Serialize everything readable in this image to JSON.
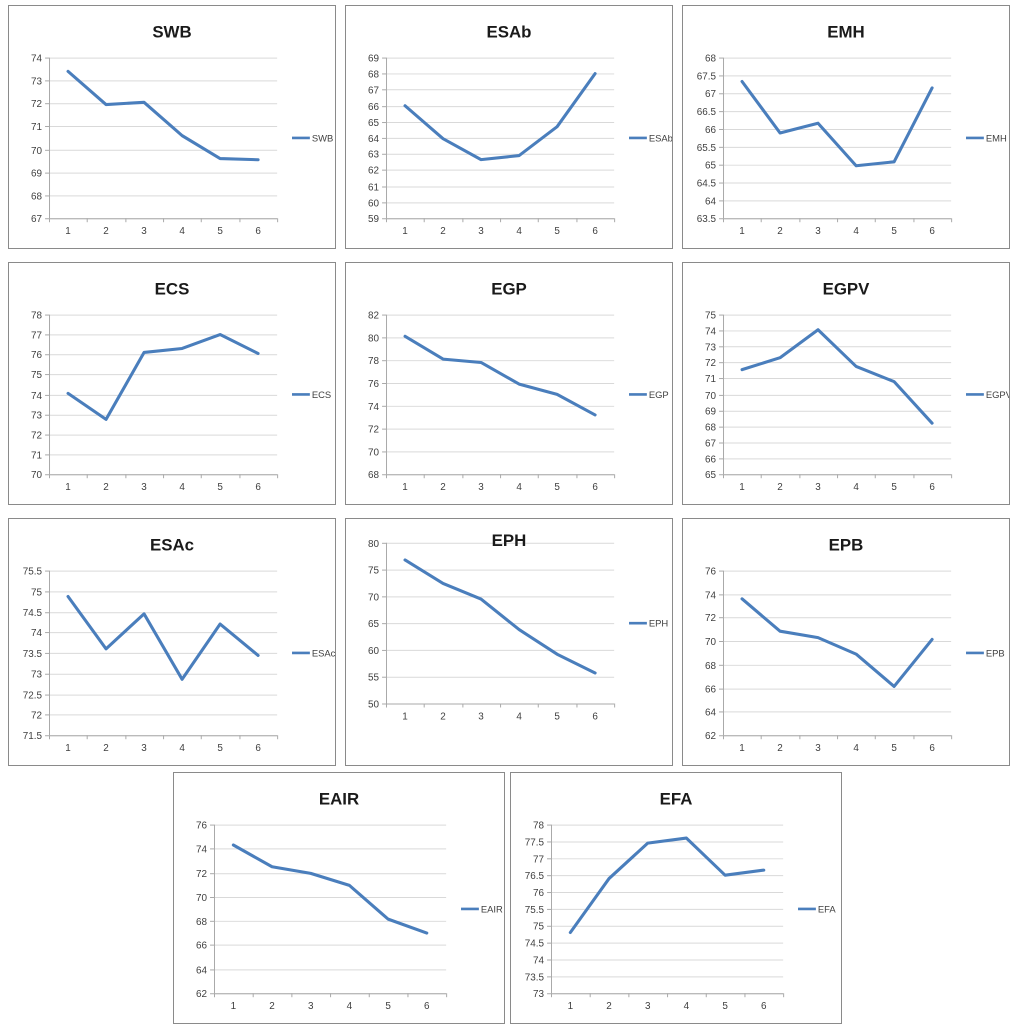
{
  "style": {
    "line_color": "#4a7ebc",
    "grid_color": "#d9d9d9",
    "axis_color": "#a9a9a9",
    "tick_text_color": "#3f3f3f",
    "title_color": "#1a1a1a",
    "box_border_color": "#8a8a8a",
    "background": "#ffffff"
  },
  "legend_position": "right",
  "chart_data": [
    {
      "type": "line",
      "title": "SWB",
      "legend": "SWB",
      "categories": [
        "1",
        "2",
        "3",
        "4",
        "5",
        "6"
      ],
      "values": [
        73.4,
        71.95,
        72.05,
        70.6,
        69.6,
        69.55
      ],
      "ylim": [
        67,
        74
      ],
      "ystep": 1,
      "grid": true
    },
    {
      "type": "line",
      "title": "ESAb",
      "legend": "ESAb",
      "categories": [
        "1",
        "2",
        "3",
        "4",
        "5",
        "6"
      ],
      "values": [
        66.0,
        63.95,
        62.65,
        62.9,
        64.7,
        68.0
      ],
      "ylim": [
        59,
        69
      ],
      "ystep": 1,
      "grid": true
    },
    {
      "type": "line",
      "title": "EMH",
      "legend": "EMH",
      "categories": [
        "1",
        "2",
        "3",
        "4",
        "5",
        "6"
      ],
      "values": [
        67.33,
        65.89,
        66.16,
        64.97,
        65.08,
        67.15
      ],
      "ylim": [
        63.5,
        68
      ],
      "ystep": 0.5,
      "grid": true
    },
    {
      "type": "line",
      "title": "ECS",
      "legend": "ECS",
      "categories": [
        "1",
        "2",
        "3",
        "4",
        "5",
        "6"
      ],
      "values": [
        74.05,
        72.75,
        76.1,
        76.3,
        77.0,
        76.05
      ],
      "ylim": [
        70,
        78
      ],
      "ystep": 1,
      "grid": true
    },
    {
      "type": "line",
      "title": "EGP",
      "legend": "EGP",
      "categories": [
        "1",
        "2",
        "3",
        "4",
        "5",
        "6"
      ],
      "values": [
        80.1,
        78.1,
        77.8,
        75.9,
        75.0,
        73.2
      ],
      "ylim": [
        68,
        82
      ],
      "ystep": 2,
      "grid": true
    },
    {
      "type": "line",
      "title": "EGPV",
      "legend": "EGPV",
      "categories": [
        "1",
        "2",
        "3",
        "4",
        "5",
        "6"
      ],
      "values": [
        71.55,
        72.3,
        74.05,
        71.75,
        70.8,
        68.2
      ],
      "ylim": [
        65,
        75
      ],
      "ystep": 1,
      "grid": true
    },
    {
      "type": "line",
      "title": "ESAc",
      "legend": "ESAc",
      "categories": [
        "1",
        "2",
        "3",
        "4",
        "5",
        "6"
      ],
      "values": [
        74.87,
        73.6,
        74.45,
        72.86,
        74.2,
        73.44
      ],
      "ylim": [
        71.5,
        75.5
      ],
      "ystep": 0.5,
      "grid": true
    },
    {
      "type": "line",
      "title": "EPH",
      "legend": "EPH",
      "categories": [
        "1",
        "2",
        "3",
        "4",
        "5",
        "6"
      ],
      "values": [
        76.8,
        72.4,
        69.5,
        63.8,
        59.2,
        55.7
      ],
      "ylim": [
        50,
        80
      ],
      "ystep": 5,
      "grid": true,
      "title_inside": true
    },
    {
      "type": "line",
      "title": "EPB",
      "legend": "EPB",
      "categories": [
        "1",
        "2",
        "3",
        "4",
        "5",
        "6"
      ],
      "values": [
        73.6,
        70.85,
        70.3,
        68.9,
        66.15,
        70.15
      ],
      "ylim": [
        62,
        76
      ],
      "ystep": 2,
      "grid": true
    },
    {
      "type": "line",
      "title": "EAIR",
      "legend": "EAIR",
      "categories": [
        "1",
        "2",
        "3",
        "4",
        "5",
        "6"
      ],
      "values": [
        74.3,
        72.5,
        71.95,
        70.95,
        68.15,
        67.0
      ],
      "ylim": [
        62,
        76
      ],
      "ystep": 2,
      "grid": true
    },
    {
      "type": "line",
      "title": "EFA",
      "legend": "EFA",
      "categories": [
        "1",
        "2",
        "3",
        "4",
        "5",
        "6"
      ],
      "values": [
        74.8,
        76.4,
        77.45,
        77.6,
        76.5,
        76.65
      ],
      "ylim": [
        73,
        78
      ],
      "ystep": 0.5,
      "grid": true
    }
  ]
}
